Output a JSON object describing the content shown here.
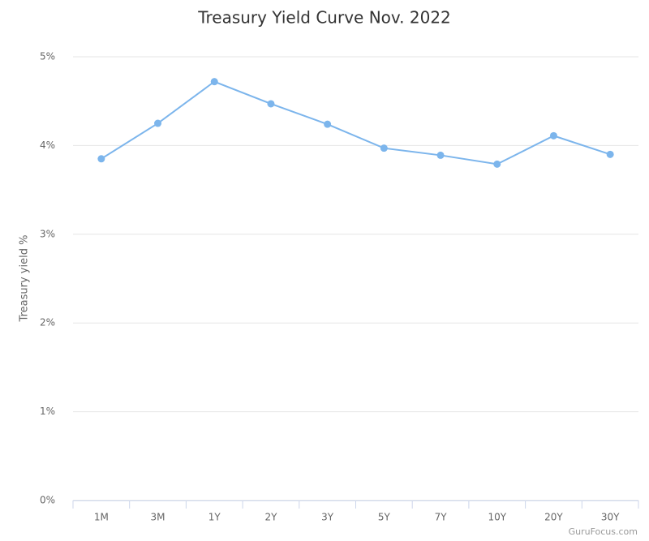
{
  "chart_data": {
    "type": "line",
    "title": "Treasury Yield Curve Nov. 2022",
    "y_label": "Treasury yield %",
    "credit": "GuruFocus.com",
    "categories": [
      "1M",
      "3M",
      "1Y",
      "2Y",
      "3Y",
      "5Y",
      "7Y",
      "10Y",
      "20Y",
      "30Y"
    ],
    "series": [
      {
        "name": "Treasury yield",
        "color": "#7cb5ec",
        "values": [
          3.85,
          4.25,
          4.72,
          4.47,
          4.24,
          3.97,
          3.89,
          3.79,
          4.11,
          3.9
        ]
      }
    ],
    "ylim": [
      0,
      5
    ],
    "yticks": [
      {
        "value": 0,
        "label": "0%"
      },
      {
        "value": 1,
        "label": "1%"
      },
      {
        "value": 2,
        "label": "2%"
      },
      {
        "value": 3,
        "label": "3%"
      },
      {
        "value": 4,
        "label": "4%"
      },
      {
        "value": 5,
        "label": "5%"
      }
    ],
    "grid": true
  }
}
